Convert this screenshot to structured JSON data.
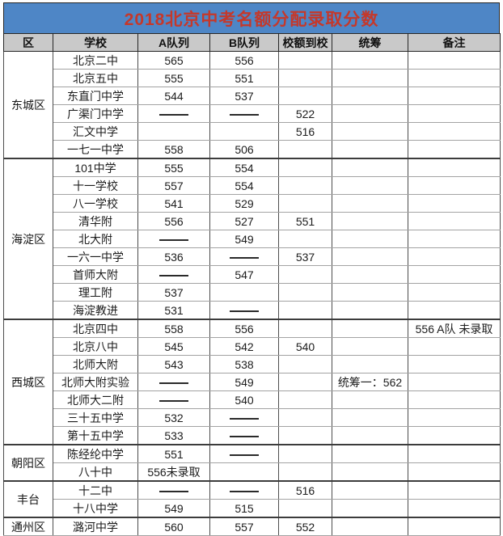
{
  "title": "2018北京中考名额分配录取分数",
  "colors": {
    "title_background": "#4e86c6",
    "title_text": "#c5382a",
    "header_background": "#c9c9c9",
    "body_background": "#ffffff",
    "border_dark": "#262626",
    "border_light": "#a3a3a3"
  },
  "table": {
    "columns": [
      "区",
      "学校",
      "A队列",
      "B队列",
      "校额到校",
      "统筹",
      "备注"
    ],
    "row_keys": [
      "school",
      "a",
      "b",
      "quota",
      "coordination",
      "remark"
    ],
    "dash": "——",
    "sections": [
      {
        "district": "东城区",
        "rows": [
          {
            "school": "北京二中",
            "a": "565",
            "b": "556",
            "quota": "",
            "coordination": "",
            "remark": ""
          },
          {
            "school": "北京五中",
            "a": "555",
            "b": "551",
            "quota": "",
            "coordination": "",
            "remark": ""
          },
          {
            "school": "东直门中学",
            "a": "544",
            "b": "537",
            "quota": "",
            "coordination": "",
            "remark": ""
          },
          {
            "school": "广渠门中学",
            "a": "——",
            "b": "——",
            "quota": "522",
            "coordination": "",
            "remark": ""
          },
          {
            "school": "汇文中学",
            "a": "",
            "b": "",
            "quota": "516",
            "coordination": "",
            "remark": ""
          },
          {
            "school": "一七一中学",
            "a": "558",
            "b": "506",
            "quota": "",
            "coordination": "",
            "remark": ""
          }
        ]
      },
      {
        "district": "海淀区",
        "rows": [
          {
            "school": "101中学",
            "a": "555",
            "b": "554",
            "quota": "",
            "coordination": "",
            "remark": ""
          },
          {
            "school": "十一学校",
            "a": "557",
            "b": "554",
            "quota": "",
            "coordination": "",
            "remark": ""
          },
          {
            "school": "八一学校",
            "a": "541",
            "b": "529",
            "quota": "",
            "coordination": "",
            "remark": ""
          },
          {
            "school": "清华附",
            "a": "556",
            "b": "527",
            "quota": "551",
            "coordination": "",
            "remark": ""
          },
          {
            "school": "北大附",
            "a": "——",
            "b": "549",
            "quota": "",
            "coordination": "",
            "remark": ""
          },
          {
            "school": "一六一中学",
            "a": "536",
            "b": "——",
            "quota": "537",
            "coordination": "",
            "remark": ""
          },
          {
            "school": "首师大附",
            "a": "——",
            "b": "547",
            "quota": "",
            "coordination": "",
            "remark": ""
          },
          {
            "school": "理工附",
            "a": "537",
            "b": "",
            "quota": "",
            "coordination": "",
            "remark": ""
          },
          {
            "school": "海淀教进",
            "a": "531",
            "b": "——",
            "quota": "",
            "coordination": "",
            "remark": ""
          }
        ]
      },
      {
        "district": "西城区",
        "rows": [
          {
            "school": "北京四中",
            "a": "558",
            "b": "556",
            "quota": "",
            "coordination": "",
            "remark": "556 A队 未录取"
          },
          {
            "school": "北京八中",
            "a": "545",
            "b": "542",
            "quota": "540",
            "coordination": "",
            "remark": ""
          },
          {
            "school": "北师大附",
            "a": "543",
            "b": "538",
            "quota": "",
            "coordination": "",
            "remark": ""
          },
          {
            "school": "北师大附实验",
            "a": "——",
            "b": "549",
            "quota": "",
            "coordination": "统筹一：562",
            "remark": ""
          },
          {
            "school": "北师大二附",
            "a": "——",
            "b": "540",
            "quota": "",
            "coordination": "",
            "remark": ""
          },
          {
            "school": "三十五中学",
            "a": "532",
            "b": "——",
            "quota": "",
            "coordination": "",
            "remark": ""
          },
          {
            "school": "第十五中学",
            "a": "533",
            "b": "——",
            "quota": "",
            "coordination": "",
            "remark": ""
          }
        ]
      },
      {
        "district": "朝阳区",
        "rows": [
          {
            "school": "陈经纶中学",
            "a": "551",
            "b": "——",
            "quota": "",
            "coordination": "",
            "remark": ""
          },
          {
            "school": "八十中",
            "a": "556未录取",
            "b": "",
            "quota": "",
            "coordination": "",
            "remark": ""
          }
        ]
      },
      {
        "district": "丰台",
        "rows": [
          {
            "school": "十二中",
            "a": "——",
            "b": "——",
            "quota": "516",
            "coordination": "",
            "remark": ""
          },
          {
            "school": "十八中学",
            "a": "549",
            "b": "515",
            "quota": "",
            "coordination": "",
            "remark": ""
          }
        ]
      },
      {
        "district": "通州区",
        "rows": [
          {
            "school": "潞河中学",
            "a": "560",
            "b": "557",
            "quota": "552",
            "coordination": "",
            "remark": ""
          }
        ]
      }
    ]
  }
}
